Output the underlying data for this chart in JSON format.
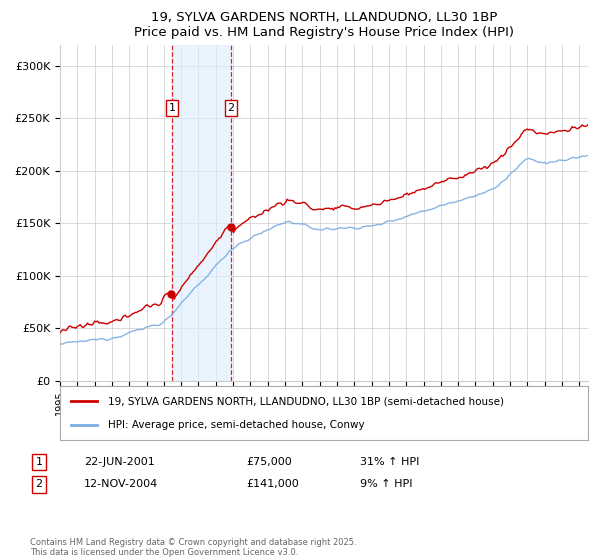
{
  "title1": "19, SYLVA GARDENS NORTH, LLANDUDNO, LL30 1BP",
  "title2": "Price paid vs. HM Land Registry's House Price Index (HPI)",
  "ylim": [
    0,
    320000
  ],
  "yticks": [
    0,
    50000,
    100000,
    150000,
    200000,
    250000,
    300000
  ],
  "ytick_labels": [
    "£0",
    "£50K",
    "£100K",
    "£150K",
    "£200K",
    "£250K",
    "£300K"
  ],
  "legend1": "19, SYLVA GARDENS NORTH, LLANDUDNO, LL30 1BP (semi-detached house)",
  "legend2": "HPI: Average price, semi-detached house, Conwy",
  "transaction1_date": "22-JUN-2001",
  "transaction1_price": "£75,000",
  "transaction1_hpi": "31% ↑ HPI",
  "transaction2_date": "12-NOV-2004",
  "transaction2_price": "£141,000",
  "transaction2_hpi": "9% ↑ HPI",
  "footer": "Contains HM Land Registry data © Crown copyright and database right 2025.\nThis data is licensed under the Open Government Licence v3.0.",
  "line1_color": "#cc0000",
  "line2_color": "#7aade0",
  "shade_color": "#ddeeff",
  "transaction1_year": 2001.47,
  "transaction2_year": 2004.87,
  "start_year": 1995.0,
  "end_year": 2025.5
}
